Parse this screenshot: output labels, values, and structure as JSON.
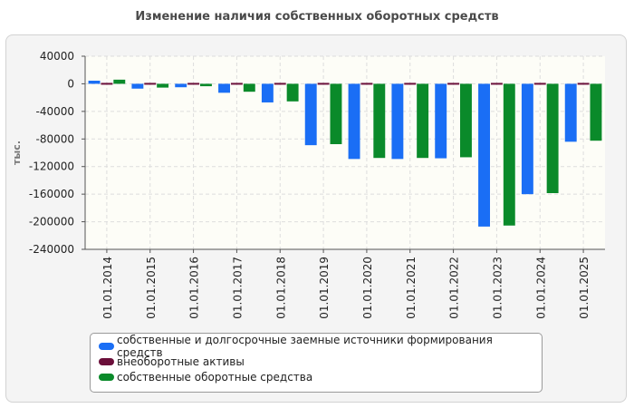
{
  "chart_data": {
    "type": "bar",
    "title": "Изменение наличия собственных оборотных средств",
    "ylabel": "тыс.",
    "categories": [
      "01.01.2014",
      "01.01.2015",
      "01.01.2016",
      "01.01.2017",
      "01.01.2018",
      "01.01.2019",
      "01.01.2020",
      "01.01.2021",
      "01.01.2022",
      "01.01.2023",
      "01.01.2024",
      "01.01.2025"
    ],
    "ylim": [
      -240000,
      40000
    ],
    "yticks": [
      40000,
      0,
      -40000,
      -80000,
      -120000,
      -160000,
      -200000,
      -240000
    ],
    "ytick_labels": [
      "40000",
      "0",
      "-40000",
      "-80000",
      "-120000",
      "-160000",
      "-200000",
      "-240000"
    ],
    "grid": true,
    "legend_position": "bottom",
    "series": [
      {
        "name": "собственные и долгосрочные заемные источники формирования средств",
        "color": "#1a6ef5",
        "values": [
          4500,
          -7000,
          -5000,
          -13000,
          -27000,
          -89000,
          -109000,
          -109000,
          -108000,
          -207000,
          -160000,
          -84000
        ]
      },
      {
        "name": "внеоборотные активы",
        "color": "#6b0f3a",
        "values": [
          -1500,
          -1500,
          -1500,
          -1500,
          -1500,
          -1500,
          -1500,
          -1500,
          -1500,
          -1500,
          -1500,
          -1500
        ]
      },
      {
        "name": "собственные оборотные средства",
        "color": "#0a8a2a",
        "values": [
          6000,
          -5500,
          -3500,
          -11500,
          -25500,
          -87500,
          -107500,
          -107500,
          -106500,
          -205500,
          -158500,
          -82500
        ]
      }
    ]
  }
}
